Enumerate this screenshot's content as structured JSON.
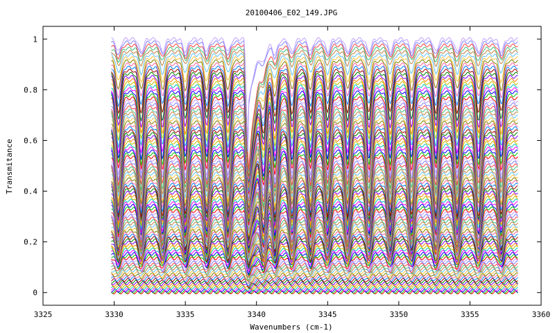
{
  "chart_data": {
    "type": "line",
    "title": "20100406_E02_149.JPG",
    "xlabel": "Wavenumbers (cm-1)",
    "ylabel": "Transmitance",
    "xlim": [
      3325,
      3360
    ],
    "ylim": [
      -0.05,
      1.05
    ],
    "x_ticks": [
      3325,
      3330,
      3335,
      3340,
      3345,
      3350,
      3355,
      3360
    ],
    "y_ticks": [
      0,
      0.2,
      0.4,
      0.6,
      0.8,
      1
    ],
    "x_tick_labels": [
      "3325",
      "3330",
      "3335",
      "3340",
      "3345",
      "3350",
      "3355",
      "3360"
    ],
    "y_tick_labels": [
      "0",
      "0.2",
      "0.4",
      "0.6",
      "0.8",
      "1"
    ],
    "data_x_range": [
      3329.8,
      3358.4
    ],
    "absorption_lines_cm1": [
      3330.3,
      3331.9,
      3333.4,
      3335.0,
      3336.5,
      3338.0,
      3340.5,
      3341.3,
      3342.5,
      3343.8,
      3345.0,
      3346.4,
      3347.9,
      3349.4,
      3350.9,
      3352.6,
      3354.1,
      3355.6,
      3357.2
    ],
    "edge_feature_cm1": 3339.4,
    "series_count": 100,
    "series_baseline_range": [
      0.0,
      1.0
    ],
    "grid": false,
    "legend": "none",
    "colors": [
      "#ff0000",
      "#00c000",
      "#0000ff",
      "#ff00ff",
      "#00c0c0",
      "#c0c000",
      "#ff8000",
      "#8000ff",
      "#008000",
      "#a00000",
      "#0080ff",
      "#ff60a0",
      "#808000",
      "#ffc040",
      "#60c0ff",
      "#c08040",
      "#40c080",
      "#ff4040",
      "#8080ff",
      "#c0a0ff"
    ]
  }
}
